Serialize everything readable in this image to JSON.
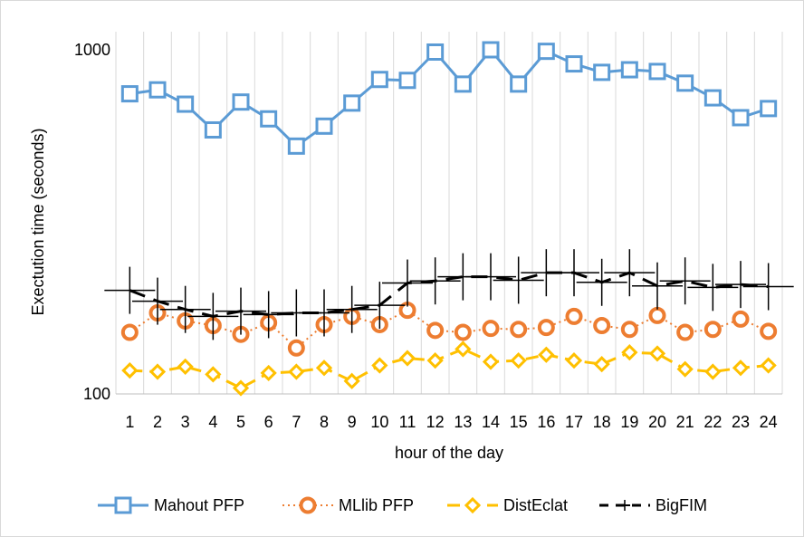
{
  "chart_data": {
    "type": "line",
    "y_scale": "log",
    "ylim": [
      100,
      1000
    ],
    "y_ticks": [
      "100",
      "1000"
    ],
    "grid": "vertical",
    "legend_position": "bottom",
    "xlabel": "hour of the day",
    "ylabel": "Exectution time (seconds)",
    "categories": [
      "1",
      "2",
      "3",
      "4",
      "5",
      "6",
      "7",
      "8",
      "9",
      "10",
      "11",
      "12",
      "13",
      "14",
      "15",
      "16",
      "17",
      "18",
      "19",
      "20",
      "21",
      "22",
      "23",
      "24"
    ],
    "series": [
      {
        "name": "Mahout PFP",
        "color": "#5b9bd5",
        "line_style": "solid",
        "marker": "square",
        "values": [
          745,
          765,
          695,
          585,
          705,
          630,
          525,
          600,
          700,
          820,
          815,
          985,
          795,
          1000,
          795,
          990,
          910,
          860,
          875,
          865,
          800,
          725,
          635,
          675
        ]
      },
      {
        "name": "MLlib PFP",
        "color": "#ed7d31",
        "line_style": "dotted",
        "marker": "circle",
        "values": [
          151,
          172,
          163,
          158,
          149,
          161,
          136,
          159,
          168,
          159,
          175,
          153,
          151,
          155,
          154,
          156,
          168,
          158,
          154,
          169,
          151,
          154,
          165,
          152
        ]
      },
      {
        "name": "DistEclat",
        "color": "#ffc000",
        "line_style": "dashed",
        "marker": "diamond",
        "values": [
          117,
          116,
          120,
          114,
          104,
          115,
          116,
          119,
          109,
          121,
          127,
          125,
          135,
          124,
          125,
          130,
          125,
          122,
          132,
          131,
          118,
          116,
          119,
          121
        ]
      },
      {
        "name": "BigFIM",
        "color": "#000000",
        "line_style": "dashed",
        "marker": "plus",
        "values": [
          200,
          186,
          176,
          168,
          174,
          170,
          172,
          172,
          176,
          181,
          210,
          213,
          219,
          219,
          214,
          225,
          225,
          211,
          225,
          206,
          213,
          204,
          208,
          205
        ]
      }
    ]
  }
}
